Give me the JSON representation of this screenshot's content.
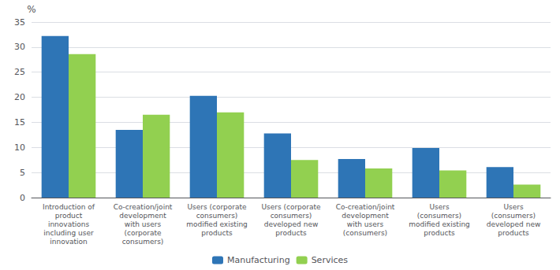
{
  "chart_data": {
    "type": "bar",
    "ylabel": "%",
    "categories": [
      "Introduction of\nproduct\ninnovations\nincluding user\ninnovation",
      "Co-creation/joint\ndevelopment\nwith users\n(corporate\nconsumers)",
      "Users (corporate\nconsumers)\nmodified existing\nproducts",
      "Users (corporate\nconsumers)\ndeveloped new\nproducts",
      "Co-creation/joint\ndevelopment\nwith users\n(consumers)",
      "Users\n(consumers)\nmodified existing\nproducts",
      "Users\n(consumers)\ndeveloped new\nproducts"
    ],
    "series": [
      {
        "name": "Manufacturing",
        "color": "#2e75b6",
        "values": [
          32.2,
          13.5,
          20.3,
          12.8,
          7.7,
          9.9,
          6.1
        ]
      },
      {
        "name": "Services",
        "color": "#92d050",
        "values": [
          28.6,
          16.5,
          17.0,
          7.5,
          5.8,
          5.4,
          2.6
        ]
      }
    ],
    "ylim": [
      0,
      35
    ],
    "yticks": [
      0,
      5,
      10,
      15,
      20,
      25,
      30,
      35
    ],
    "grid": true,
    "legend": "bottom"
  }
}
